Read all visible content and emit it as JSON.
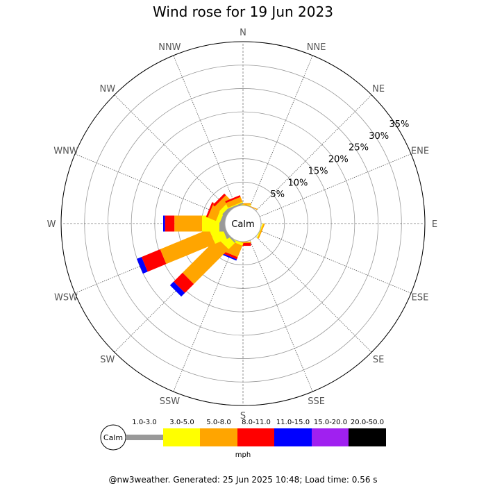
{
  "chart_data": {
    "type": "windrose",
    "title": "Wind rose for 19 Jun 2023",
    "directions": [
      "N",
      "NNE",
      "NE",
      "ENE",
      "E",
      "ESE",
      "SE",
      "SSE",
      "S",
      "SSW",
      "SW",
      "WSW",
      "W",
      "WNW",
      "NW",
      "NNW"
    ],
    "radial_max_percent": 35,
    "radial_ticks": [
      5,
      10,
      15,
      20,
      25,
      30,
      35
    ],
    "radial_tick_labels": [
      "5%",
      "10%",
      "15%",
      "20%",
      "25%",
      "30%",
      "35%"
    ],
    "center_label": "Calm",
    "speed_bins": [
      {
        "label": "1.0-3.0",
        "color": "#999999"
      },
      {
        "label": "3.0-5.0",
        "color": "#ffff00"
      },
      {
        "label": "5.0-8.0",
        "color": "#ffa500"
      },
      {
        "label": "8.0-11.0",
        "color": "#ff0000"
      },
      {
        "label": "11.0-15.0",
        "color": "#0000ff"
      },
      {
        "label": "15.0-20.0",
        "color": "#a020f0"
      },
      {
        "label": "20.0-50.0",
        "color": "#000000"
      }
    ],
    "units": "mph",
    "series": [
      {
        "direction": "N",
        "values": [
          0.0,
          0.2,
          0.3,
          0.0,
          0.0,
          0,
          0
        ]
      },
      {
        "direction": "NNE",
        "values": [
          0.0,
          0.0,
          0.2,
          0.0,
          0.0,
          0,
          0
        ]
      },
      {
        "direction": "NE",
        "values": [
          0,
          0,
          0,
          0,
          0,
          0,
          0
        ]
      },
      {
        "direction": "ENE",
        "values": [
          0,
          0,
          0,
          0,
          0,
          0,
          0
        ]
      },
      {
        "direction": "E",
        "values": [
          0,
          0,
          0,
          0,
          0,
          0,
          0
        ]
      },
      {
        "direction": "ESE",
        "values": [
          0.0,
          0.2,
          0.3,
          0.0,
          0.0,
          0,
          0
        ]
      },
      {
        "direction": "SE",
        "values": [
          0,
          0,
          0,
          0,
          0,
          0,
          0
        ]
      },
      {
        "direction": "SSE",
        "values": [
          0,
          0,
          0,
          0,
          0,
          0,
          0
        ]
      },
      {
        "direction": "S",
        "values": [
          0.0,
          0.0,
          0.3,
          0.6,
          0.0,
          0,
          0
        ]
      },
      {
        "direction": "SSW",
        "values": [
          0.0,
          0.6,
          2.6,
          0.5,
          0.3,
          0,
          0
        ]
      },
      {
        "direction": "SW",
        "values": [
          0.3,
          1.9,
          10.5,
          2.7,
          1.1,
          0,
          0
        ]
      },
      {
        "direction": "WSW",
        "values": [
          0.6,
          2.7,
          11.3,
          4.3,
          1.1,
          0,
          0
        ]
      },
      {
        "direction": "W",
        "values": [
          1.2,
          3.7,
          5.9,
          2.0,
          0.4,
          0,
          0
        ]
      },
      {
        "direction": "WNW",
        "values": [
          0.8,
          0.9,
          1.9,
          0.4,
          0.0,
          0,
          0
        ]
      },
      {
        "direction": "NW",
        "values": [
          0.7,
          0.9,
          1.4,
          0.5,
          0.0,
          0,
          0
        ]
      },
      {
        "direction": "NNW",
        "values": [
          0.3,
          0.2,
          1.1,
          0.4,
          0.0,
          0,
          0
        ]
      }
    ]
  },
  "footer": "@nw3weather. Generated: 25 Jun 2025 10:48; Load time: 0.56 s"
}
